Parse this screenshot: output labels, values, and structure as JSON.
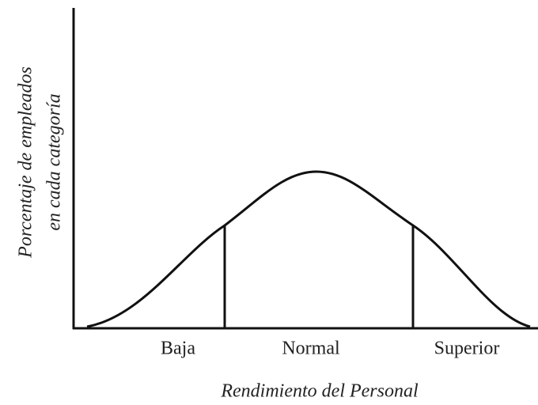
{
  "y_axis_label": [
    "Porcentaje de empleados",
    "en cada categoría"
  ],
  "regions": [
    "Baja",
    "Normal",
    "Superior"
  ],
  "x_axis_label": "Rendimiento del Personal"
}
